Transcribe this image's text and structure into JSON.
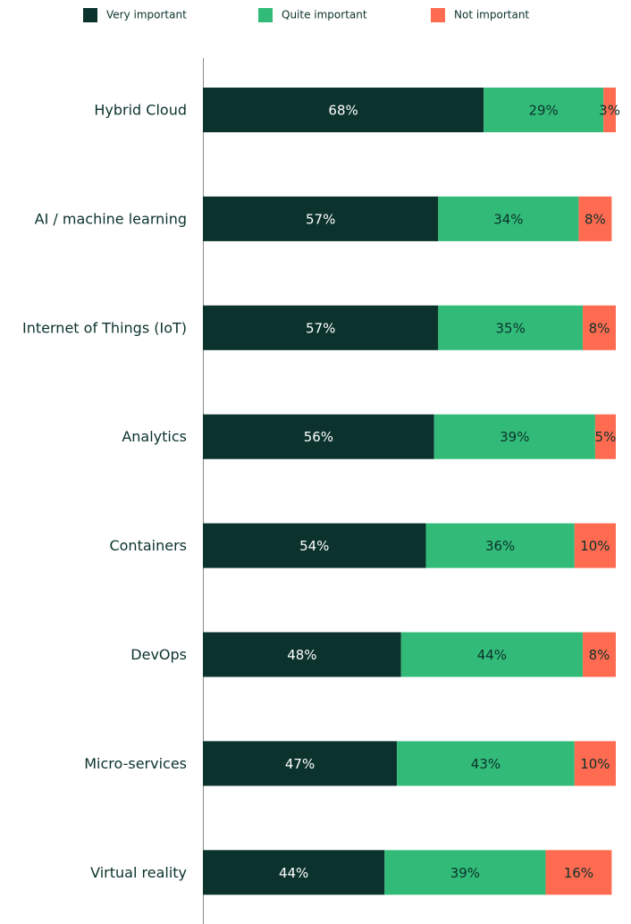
{
  "chart_data": {
    "type": "stacked-barh",
    "categories": [
      "Hybrid Cloud",
      "AI / machine learning",
      "Internet of Things (IoT)",
      "Analytics",
      "Containers",
      "DevOps",
      "Micro-services",
      "Virtual reality"
    ],
    "series": [
      {
        "name": "Very important",
        "color": "#0b322c",
        "values": [
          68,
          57,
          57,
          56,
          54,
          48,
          47,
          44
        ],
        "value_labels": [
          "68%",
          "57%",
          "57%",
          "56%",
          "54%",
          "48%",
          "47%",
          "44%"
        ]
      },
      {
        "name": "Quite important",
        "color": "#32bb78",
        "values": [
          29,
          34,
          35,
          39,
          36,
          44,
          43,
          39
        ],
        "value_labels": [
          "29%",
          "34%",
          "35%",
          "39%",
          "36%",
          "44%",
          "43%",
          "39%"
        ]
      },
      {
        "name": "Not important",
        "color": "#ff6b50",
        "values": [
          3,
          8,
          8,
          5,
          10,
          8,
          10,
          16
        ],
        "value_labels": [
          "3%",
          "8%",
          "8%",
          "5%",
          "10%",
          "8%",
          "10%",
          "16%"
        ]
      }
    ],
    "xlim": [
      0,
      100
    ],
    "legend": "top"
  }
}
